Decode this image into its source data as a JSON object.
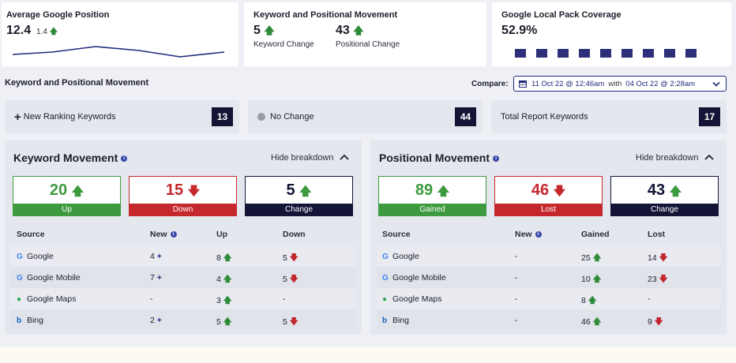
{
  "avg_position": {
    "title": "Average Google Position",
    "value": "12.4",
    "delta": "1.4",
    "delta_icon": "up-arrow-icon"
  },
  "kpm_summary": {
    "title": "Keyword and Positional Movement",
    "keyword_value": "5",
    "keyword_label": "Keyword Change",
    "positional_value": "43",
    "positional_label": "Positional Change"
  },
  "local_pack": {
    "title": "Google Local Pack Coverage",
    "value": "52.9%"
  },
  "section": {
    "title": "Keyword and Positional Movement"
  },
  "compare": {
    "label": "Compare:",
    "date_from": "11 Oct 22 @ 12:46am",
    "with": "with",
    "date_to": "04 Oct 22 @ 2:28am"
  },
  "stats": [
    {
      "label": "New Ranking Keywords",
      "icon": "plus-icon",
      "count": "13"
    },
    {
      "label": "No Change",
      "icon": "dot-icon",
      "count": "44"
    },
    {
      "label": "Total Report Keywords",
      "icon": "",
      "count": "17"
    }
  ],
  "keyword_movement": {
    "title": "Keyword Movement",
    "hide_label": "Hide breakdown",
    "metrics": [
      {
        "value": "20",
        "label": "Up",
        "dir": "up",
        "color": "#3d9a3f"
      },
      {
        "value": "15",
        "label": "Down",
        "dir": "down",
        "color": "#c4282c"
      },
      {
        "value": "5",
        "label": "Change",
        "dir": "up",
        "color": "#131436"
      }
    ],
    "headers": [
      "Source",
      "New",
      "Up",
      "Down"
    ],
    "rows": [
      {
        "source": "Google",
        "icon": "google-icon",
        "new": "4",
        "up": "8",
        "down": "5"
      },
      {
        "source": "Google Mobile",
        "icon": "google-icon",
        "new": "7",
        "up": "4",
        "down": "5"
      },
      {
        "source": "Google Maps",
        "icon": "google-maps-icon",
        "new": "-",
        "up": "3",
        "down": "-"
      },
      {
        "source": "Bing",
        "icon": "bing-icon",
        "new": "2",
        "up": "5",
        "down": "5"
      }
    ]
  },
  "positional_movement": {
    "title": "Positional Movement",
    "hide_label": "Hide breakdown",
    "metrics": [
      {
        "value": "89",
        "label": "Gained",
        "dir": "up",
        "color": "#3d9a3f"
      },
      {
        "value": "46",
        "label": "Lost",
        "dir": "down",
        "color": "#c4282c"
      },
      {
        "value": "43",
        "label": "Change",
        "dir": "up",
        "color": "#131436"
      }
    ],
    "headers": [
      "Source",
      "New",
      "Gained",
      "Lost"
    ],
    "rows": [
      {
        "source": "Google",
        "icon": "google-icon",
        "new": "-",
        "up": "25",
        "down": "14"
      },
      {
        "source": "Google Mobile",
        "icon": "google-icon",
        "new": "-",
        "up": "10",
        "down": "23"
      },
      {
        "source": "Google Maps",
        "icon": "google-maps-icon",
        "new": "-",
        "up": "8",
        "down": "-"
      },
      {
        "source": "Bing",
        "icon": "bing-icon",
        "new": "-",
        "up": "46",
        "down": "9"
      }
    ]
  }
}
